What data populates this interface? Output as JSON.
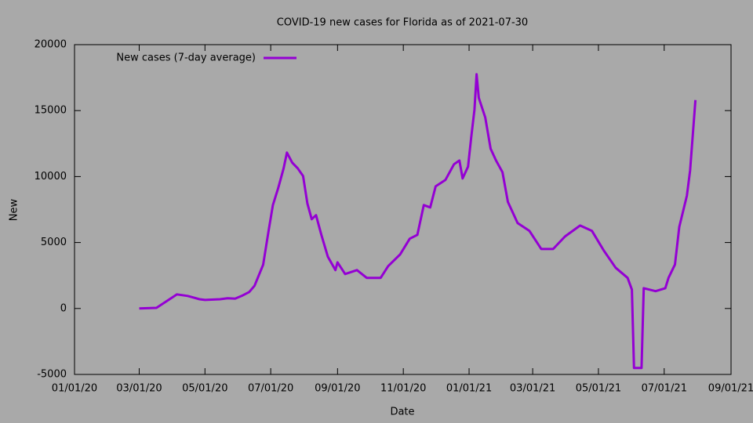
{
  "chart_data": {
    "type": "line",
    "title": "COVID-19 new cases for Florida as of 2021-07-30",
    "x_label": "Date",
    "y_label": "New",
    "x": [
      "2020-03-01",
      "2020-03-17",
      "2020-03-26",
      "2020-04-05",
      "2020-04-15",
      "2020-04-26",
      "2020-05-01",
      "2020-05-15",
      "2020-05-22",
      "2020-05-29",
      "2020-06-04",
      "2020-06-11",
      "2020-06-16",
      "2020-06-24",
      "2020-06-29",
      "2020-07-03",
      "2020-07-08",
      "2020-07-13",
      "2020-07-16",
      "2020-07-21",
      "2020-07-26",
      "2020-07-31",
      "2020-08-04",
      "2020-08-08",
      "2020-08-12",
      "2020-08-17",
      "2020-08-23",
      "2020-08-30",
      "2020-09-01",
      "2020-09-08",
      "2020-09-19",
      "2020-09-28",
      "2020-10-11",
      "2020-10-18",
      "2020-10-29",
      "2020-11-07",
      "2020-11-14",
      "2020-11-20",
      "2020-11-26",
      "2020-12-01",
      "2020-12-10",
      "2020-12-18",
      "2020-12-23",
      "2020-12-26",
      "2020-12-31",
      "2021-01-03",
      "2021-01-06",
      "2021-01-08",
      "2021-01-10",
      "2021-01-16",
      "2021-01-21",
      "2021-01-26",
      "2021-02-01",
      "2021-02-06",
      "2021-02-15",
      "2021-02-26",
      "2021-03-09",
      "2021-03-20",
      "2021-03-31",
      "2021-04-14",
      "2021-04-25",
      "2021-05-06",
      "2021-05-17",
      "2021-05-28",
      "2021-06-01",
      "2021-06-03",
      "2021-06-10",
      "2021-06-12",
      "2021-06-23",
      "2021-07-02",
      "2021-07-05",
      "2021-07-11",
      "2021-07-15",
      "2021-07-22",
      "2021-07-25",
      "2021-07-30"
    ],
    "series": [
      {
        "name": "New cases (7-day average)",
        "color": "#9400d3",
        "values": [
          0,
          50,
          530,
          1070,
          950,
          700,
          650,
          700,
          770,
          750,
          950,
          1250,
          1720,
          3320,
          5880,
          7840,
          9150,
          10630,
          11820,
          11050,
          10630,
          10040,
          7960,
          6770,
          7070,
          5580,
          3920,
          2910,
          3500,
          2610,
          2910,
          2320,
          2320,
          3210,
          4100,
          5290,
          5580,
          7840,
          7660,
          9260,
          9740,
          10930,
          11220,
          9860,
          10750,
          13000,
          15080,
          17760,
          15970,
          14490,
          12110,
          11220,
          10330,
          8080,
          6470,
          5880,
          4510,
          4510,
          5460,
          6290,
          5880,
          4390,
          3090,
          2320,
          1430,
          -4510,
          -4510,
          1540,
          1310,
          1540,
          2320,
          3330,
          6180,
          8550,
          10450,
          15800
        ]
      }
    ],
    "xlim": [
      "2020-01-01",
      "2021-09-01"
    ],
    "xticks": [
      {
        "value": "2020-01-01",
        "label": "01/01/20"
      },
      {
        "value": "2020-03-01",
        "label": "03/01/20"
      },
      {
        "value": "2020-05-01",
        "label": "05/01/20"
      },
      {
        "value": "2020-07-01",
        "label": "07/01/20"
      },
      {
        "value": "2020-09-01",
        "label": "09/01/20"
      },
      {
        "value": "2020-11-01",
        "label": "11/01/20"
      },
      {
        "value": "2021-01-01",
        "label": "01/01/21"
      },
      {
        "value": "2021-03-01",
        "label": "03/01/21"
      },
      {
        "value": "2021-05-01",
        "label": "05/01/21"
      },
      {
        "value": "2021-07-01",
        "label": "07/01/21"
      },
      {
        "value": "2021-09-01",
        "label": "09/01/21"
      }
    ],
    "ylim": [
      -5000,
      20000
    ],
    "yticks": [
      -5000,
      0,
      5000,
      10000,
      15000,
      20000
    ],
    "legend": "top-left"
  }
}
